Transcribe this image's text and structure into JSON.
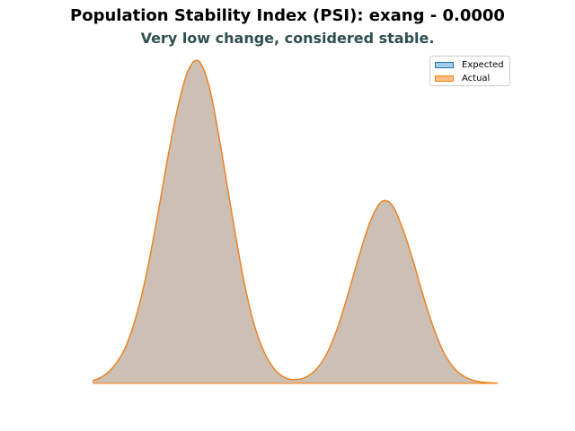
{
  "chart_data": {
    "type": "area",
    "title": "Population Stability Index (PSI): exang - 0.0000",
    "subtitle": "Very low change, considered stable.",
    "xlabel": "",
    "ylabel": "",
    "xlim": [
      -0.45,
      1.45
    ],
    "ylim": [
      0,
      1.76
    ],
    "x": [
      -0.45,
      -0.4,
      -0.35,
      -0.3,
      -0.25,
      -0.2,
      -0.15,
      -0.1,
      -0.05,
      0.0,
      0.05,
      0.1,
      0.15,
      0.2,
      0.25,
      0.3,
      0.35,
      0.4,
      0.45,
      0.5,
      0.55,
      0.6,
      0.65,
      0.7,
      0.75,
      0.8,
      0.85,
      0.9,
      0.95,
      1.0,
      1.05,
      1.1,
      1.15,
      1.2,
      1.25,
      1.3,
      1.35,
      1.4,
      1.45
    ],
    "series": [
      {
        "name": "Expected",
        "color": "#1f77b4",
        "fill": "#a6cde8",
        "values": [
          0.014,
          0.039,
          0.091,
          0.182,
          0.339,
          0.566,
          0.859,
          1.181,
          1.468,
          1.666,
          1.71,
          1.562,
          1.263,
          0.924,
          0.6,
          0.344,
          0.178,
          0.08,
          0.032,
          0.02,
          0.033,
          0.076,
          0.161,
          0.299,
          0.482,
          0.678,
          0.853,
          0.96,
          0.953,
          0.835,
          0.664,
          0.467,
          0.292,
          0.157,
          0.075,
          0.032,
          0.012,
          0.004,
          0.001
        ]
      },
      {
        "name": "Actual",
        "color": "#ff7f0e",
        "fill": "#ffbf86",
        "values": [
          0.014,
          0.039,
          0.091,
          0.182,
          0.339,
          0.566,
          0.859,
          1.181,
          1.468,
          1.666,
          1.71,
          1.562,
          1.263,
          0.924,
          0.6,
          0.344,
          0.178,
          0.08,
          0.032,
          0.02,
          0.033,
          0.076,
          0.161,
          0.299,
          0.482,
          0.678,
          0.853,
          0.96,
          0.953,
          0.835,
          0.664,
          0.467,
          0.292,
          0.157,
          0.075,
          0.032,
          0.012,
          0.004,
          0.001
        ]
      }
    ],
    "grid": false,
    "legend_position": "top-right"
  }
}
